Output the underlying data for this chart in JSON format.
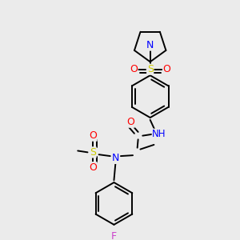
{
  "background_color": "#ebebeb",
  "figsize": [
    3.0,
    3.0
  ],
  "dpi": 100,
  "colors": {
    "C": "#000000",
    "N": "#0000ff",
    "O": "#ff0000",
    "S": "#cccc00",
    "F": "#cc44cc",
    "H": "#008080",
    "bond": "#000000"
  },
  "bond_lw": 1.4
}
